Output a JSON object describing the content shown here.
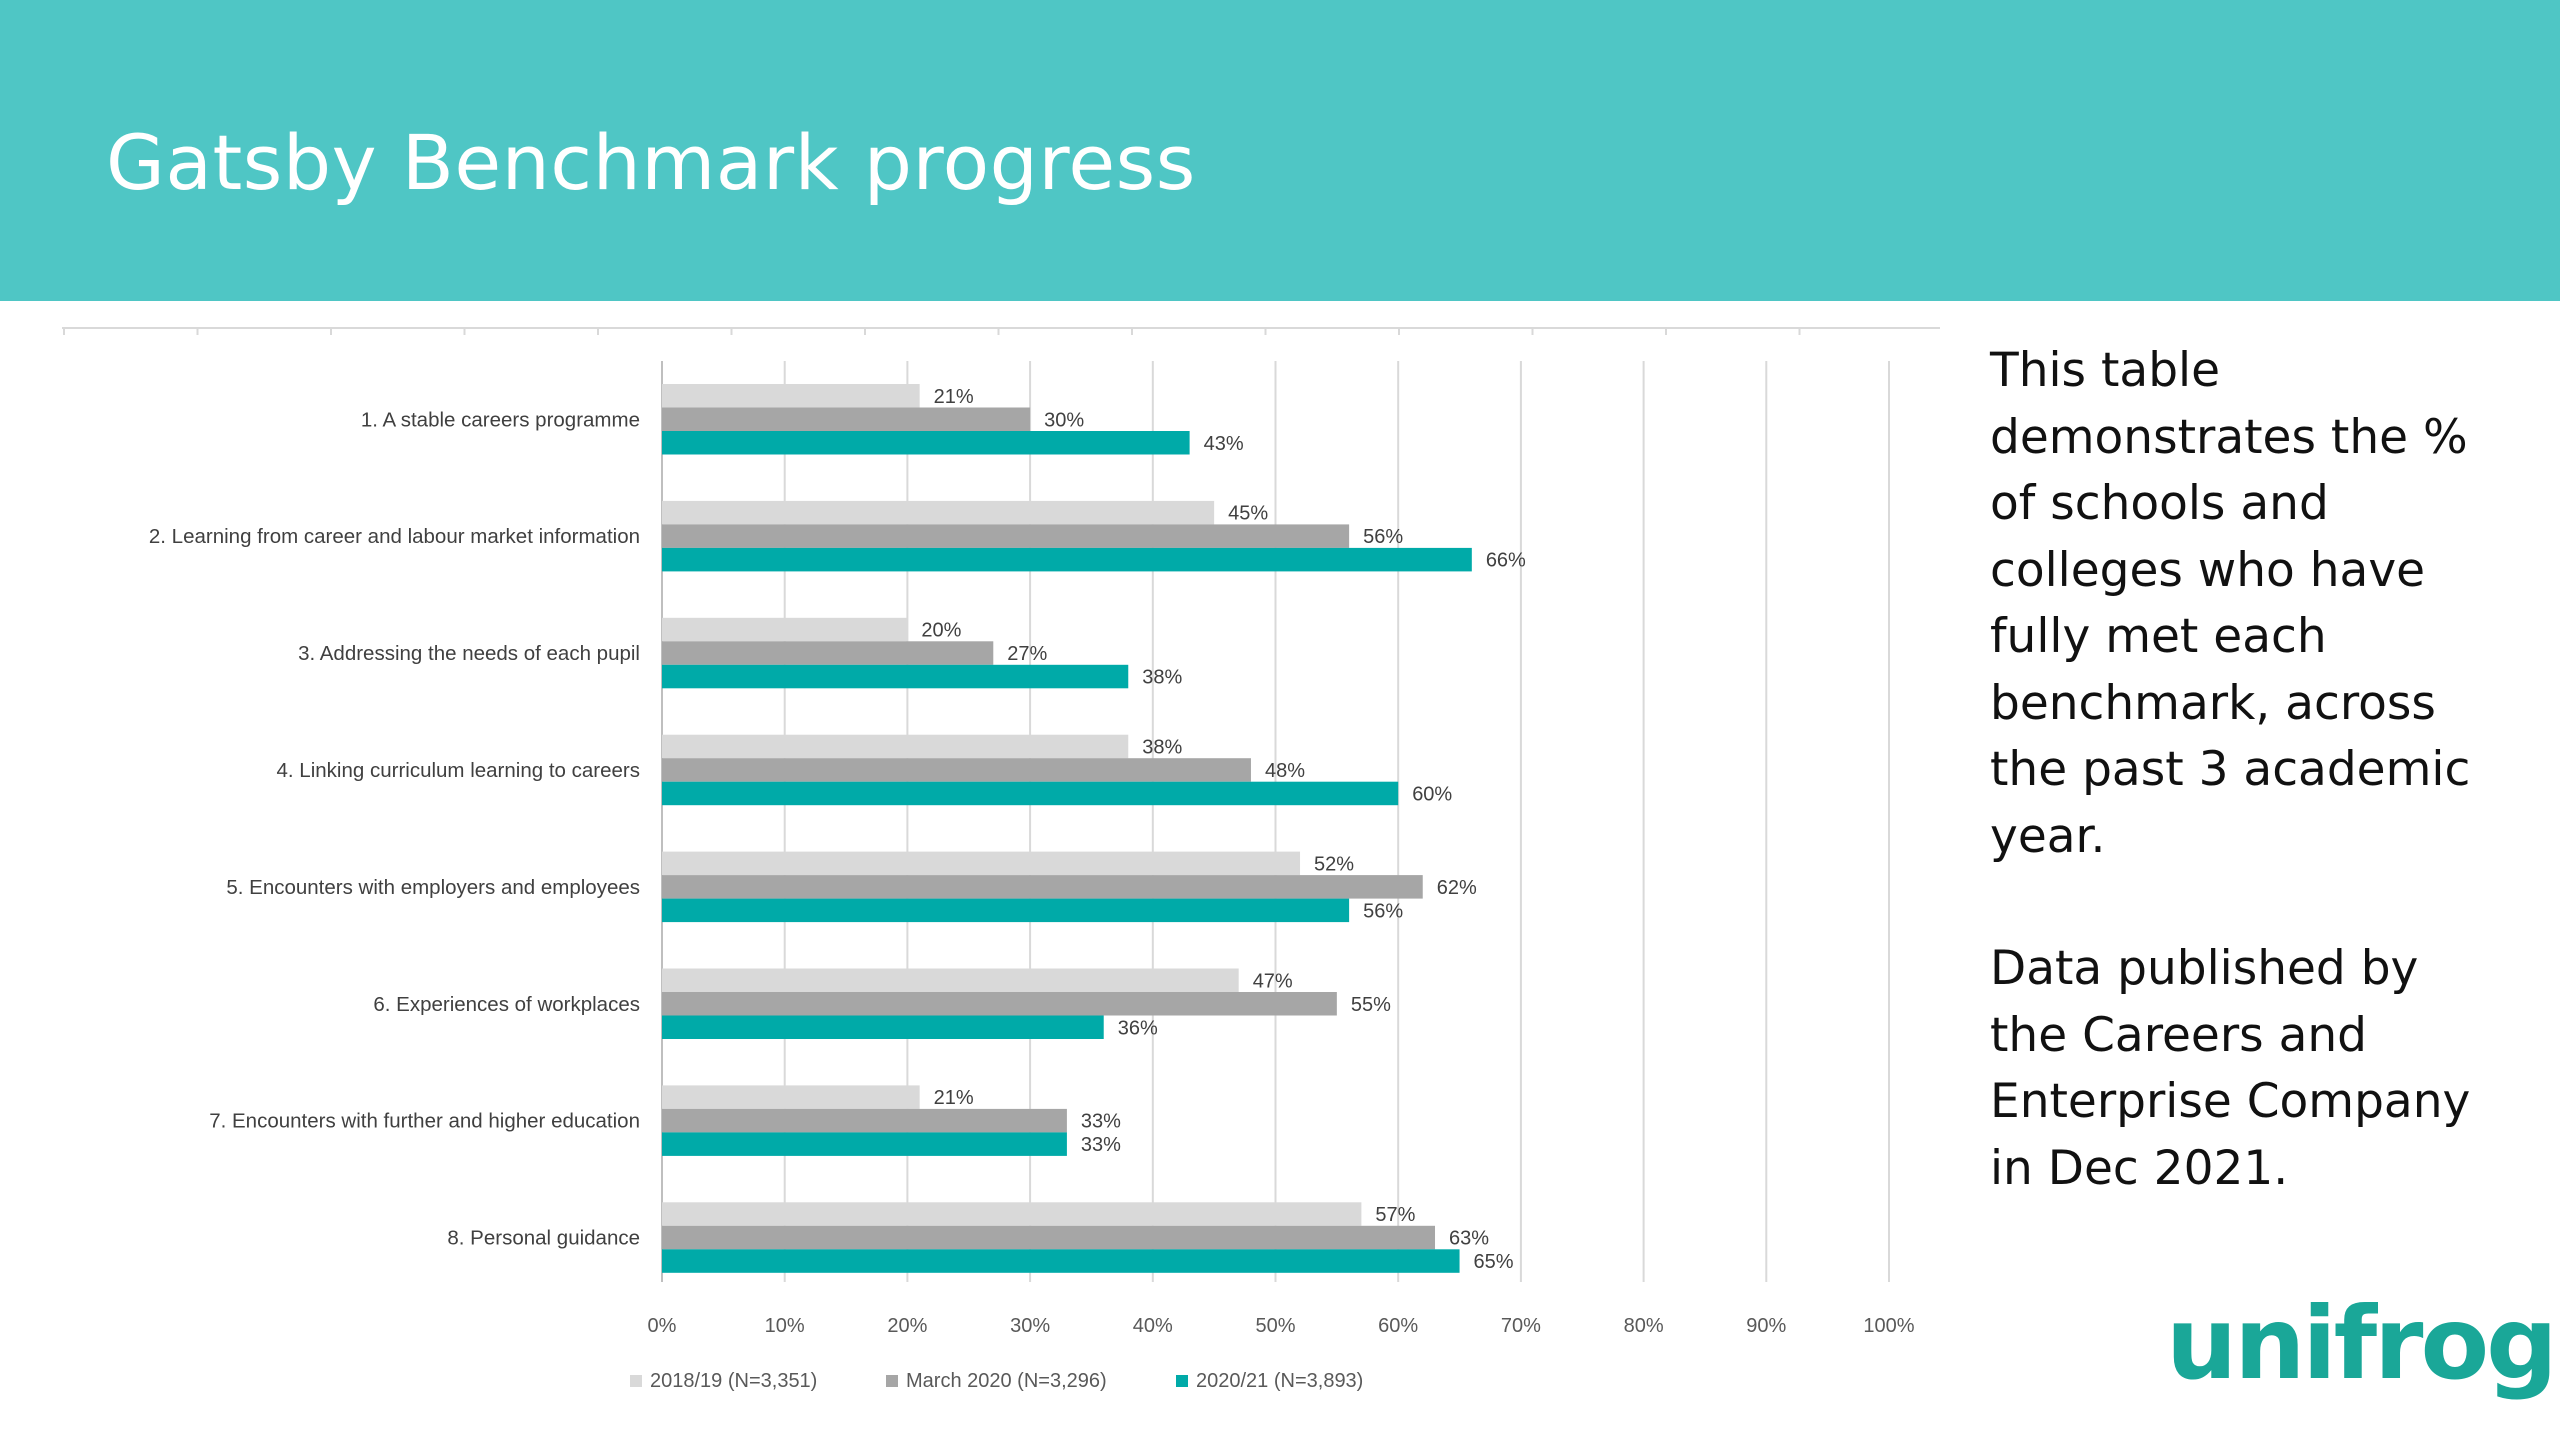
{
  "slide": {
    "title": "Gatsby Benchmark progress",
    "description": "This table demonstrates the % of schools and colleges who have fully met each benchmark, across the past 3 academic year.",
    "source": "Data published by the Careers and Enterprise Company in Dec 2021.",
    "logo_text": "unifrog",
    "header_color": "#4fc6c5",
    "logo_color": "#1aa798"
  },
  "chart_data": {
    "type": "bar",
    "orientation": "horizontal",
    "categories": [
      "1. A stable careers programme",
      "2. Learning from career and labour market information",
      "3. Addressing the needs of each pupil",
      "4. Linking curriculum learning to careers",
      "5. Encounters with employers and employees",
      "6. Experiences of workplaces",
      "7. Encounters with further and higher education",
      "8. Personal guidance"
    ],
    "series": [
      {
        "name": "2018/19 (N=3,351)",
        "color": "#d9d9d9",
        "values": [
          21,
          45,
          20,
          38,
          52,
          47,
          21,
          57
        ]
      },
      {
        "name": "March 2020 (N=3,296)",
        "color": "#a6a6a6",
        "values": [
          30,
          56,
          27,
          48,
          62,
          55,
          33,
          63
        ]
      },
      {
        "name": "2020/21 (N=3,893)",
        "color": "#00aaa8",
        "values": [
          43,
          66,
          38,
          60,
          56,
          36,
          33,
          65
        ]
      }
    ],
    "xlim": [
      0,
      100
    ],
    "xticks": [
      "0%",
      "10%",
      "20%",
      "30%",
      "40%",
      "50%",
      "60%",
      "70%",
      "80%",
      "90%",
      "100%"
    ],
    "value_suffix": "%",
    "grid": "vertical",
    "legend": "bottom"
  }
}
